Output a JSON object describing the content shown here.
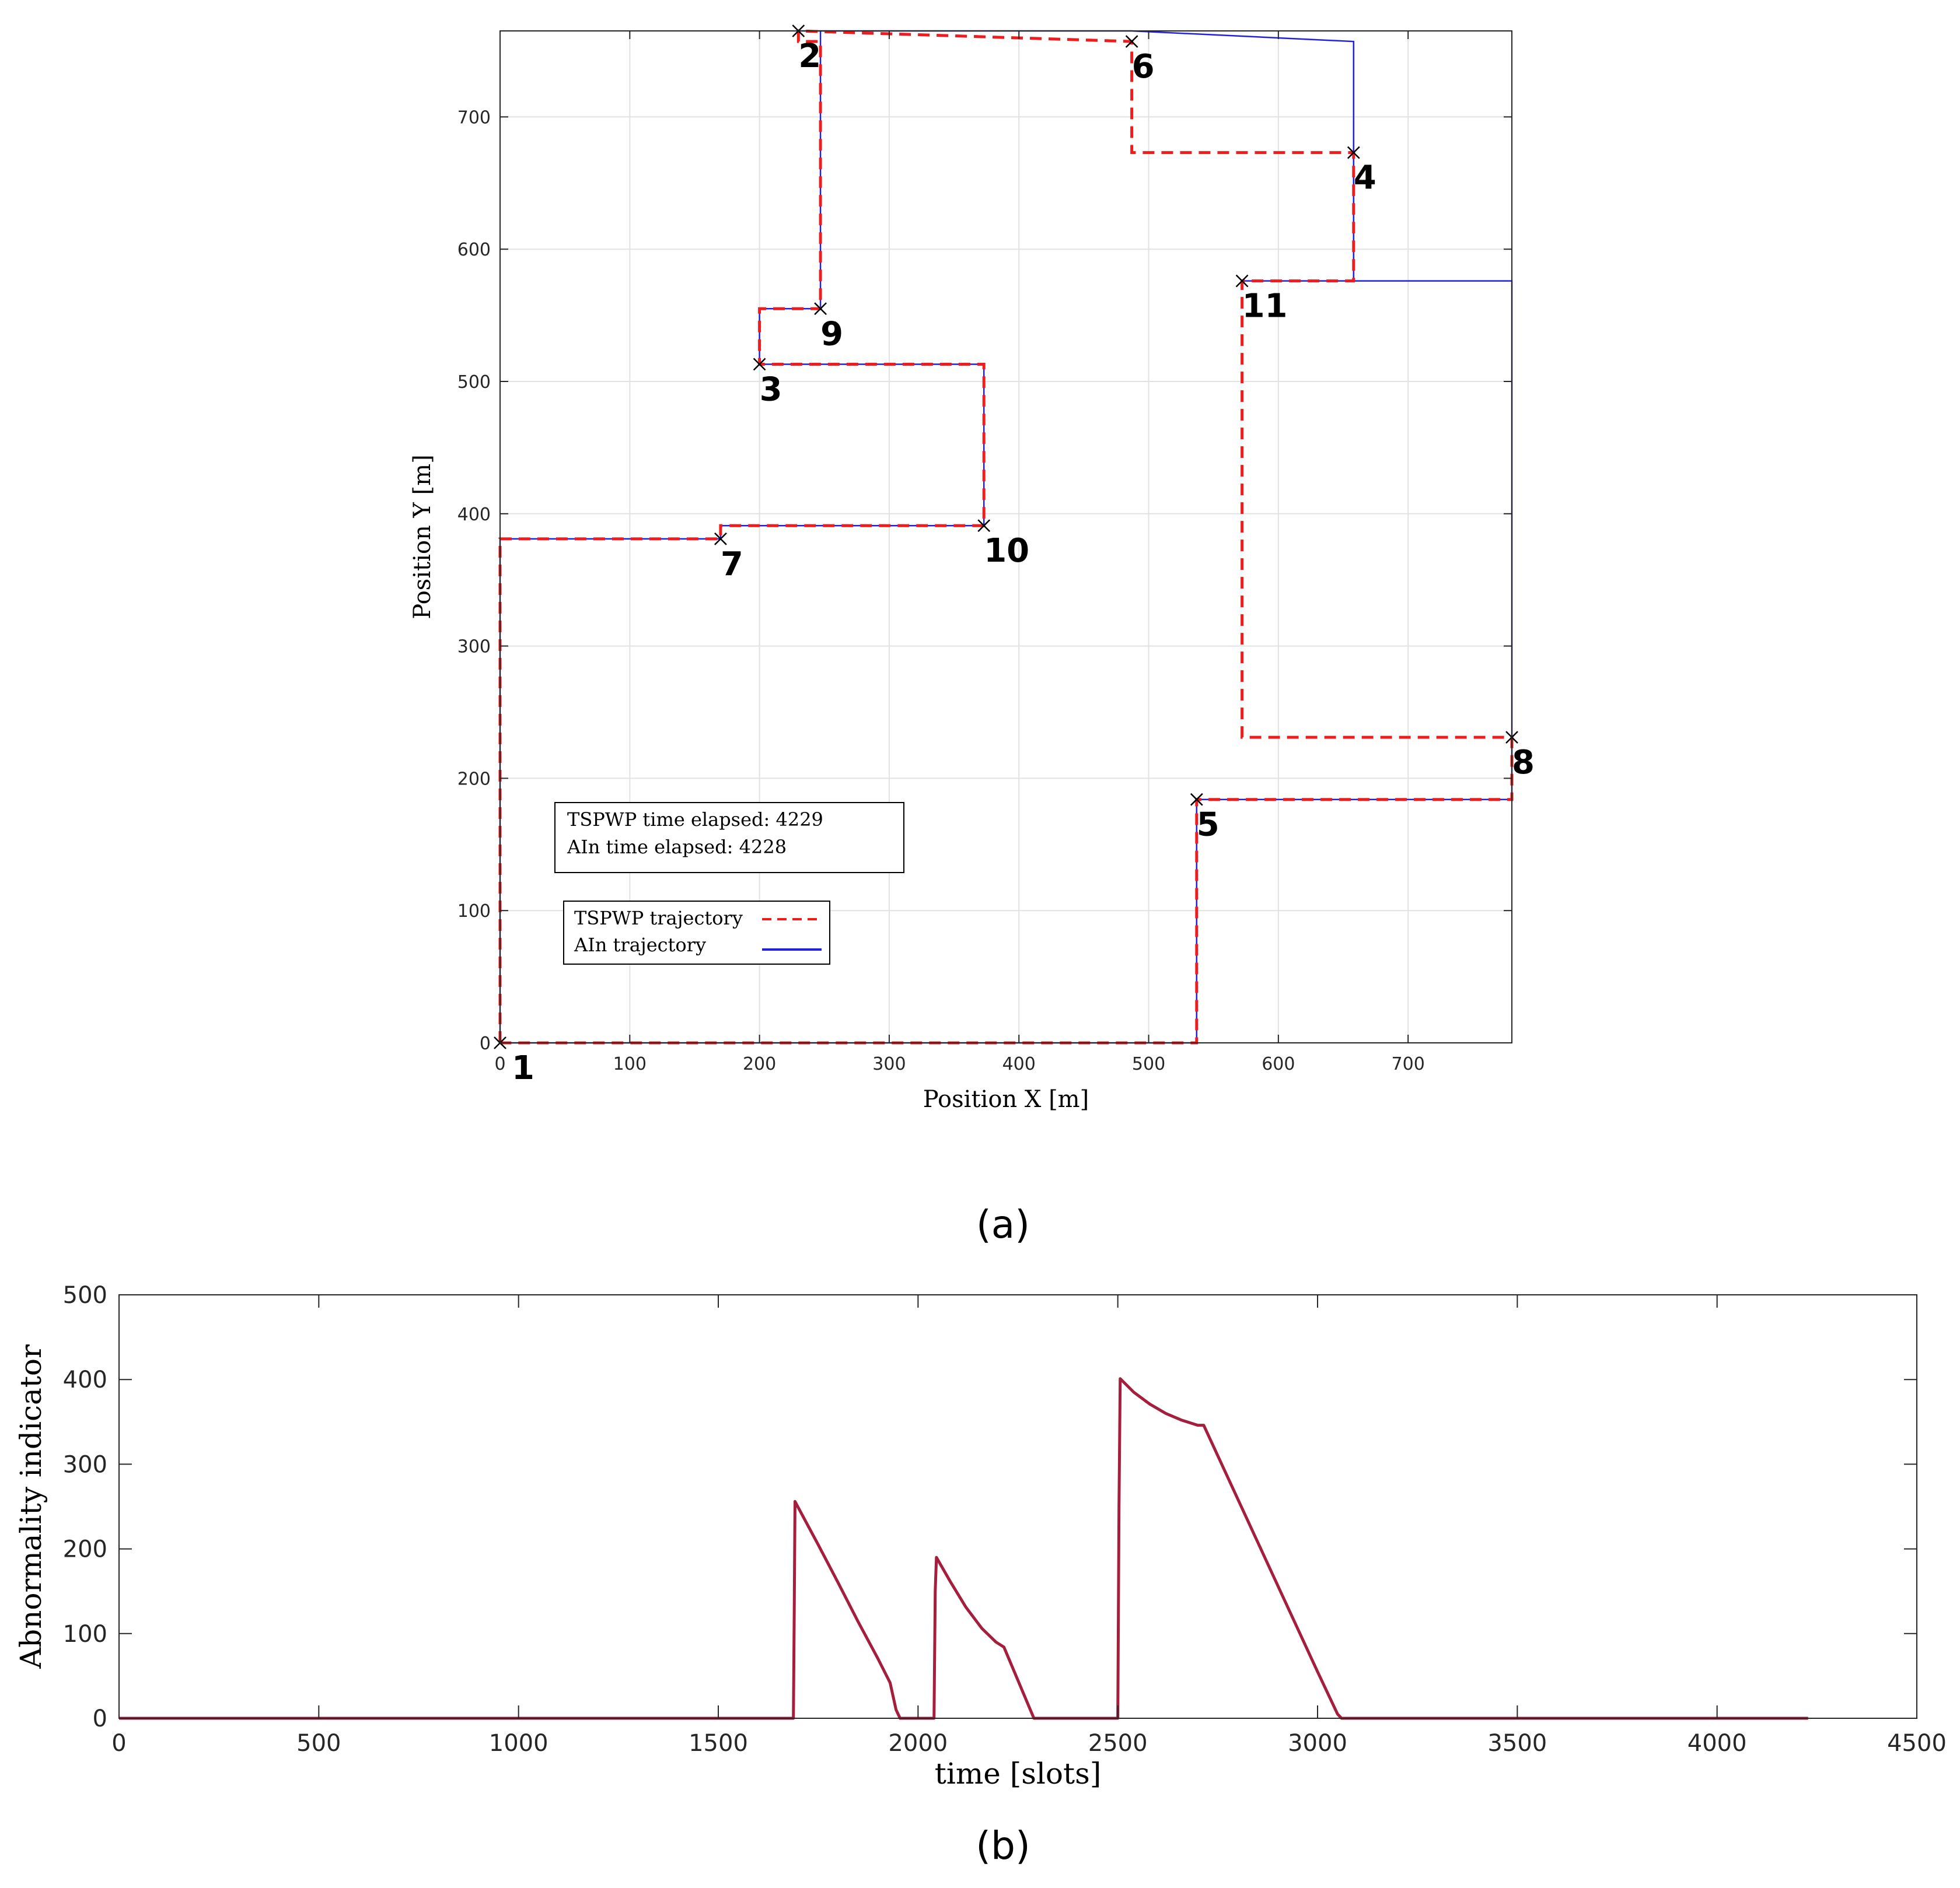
{
  "chart_data": [
    {
      "type": "line",
      "caption": "(a)",
      "xlabel": "Position X [m]",
      "ylabel": "Position Y [m]",
      "xlim": [
        0,
        780
      ],
      "ylim": [
        0,
        765
      ],
      "xticks": [
        0,
        100,
        200,
        300,
        400,
        500,
        600,
        700
      ],
      "yticks": [
        0,
        100,
        200,
        300,
        400,
        500,
        600,
        700
      ],
      "grid": true,
      "info_box": [
        "TSPWP time elapsed: 4229",
        "AIn time elapsed: 4228"
      ],
      "legend_position": "lower-left",
      "colors": {
        "tspwp": "#ee1c1c",
        "ain": "#2020dd",
        "markers": "#000000"
      },
      "waypoints": [
        {
          "label": "1",
          "x": 0,
          "y": 0
        },
        {
          "label": "2",
          "x": 230,
          "y": 765
        },
        {
          "label": "3",
          "x": 200,
          "y": 513
        },
        {
          "label": "4",
          "x": 658,
          "y": 673
        },
        {
          "label": "5",
          "x": 537,
          "y": 184
        },
        {
          "label": "6",
          "x": 487,
          "y": 757
        },
        {
          "label": "7",
          "x": 170,
          "y": 381
        },
        {
          "label": "8",
          "x": 780,
          "y": 231
        },
        {
          "label": "9",
          "x": 247,
          "y": 555
        },
        {
          "label": "10",
          "x": 373,
          "y": 391
        },
        {
          "label": "11",
          "x": 572,
          "y": 576
        }
      ],
      "series": [
        {
          "name": "TSPWP trajectory",
          "style": "dashed",
          "color": "#ee1c1c",
          "x": [
            0,
            0,
            170,
            170,
            373,
            373,
            200,
            200,
            247,
            247,
            230,
            230,
            487,
            487,
            658,
            658,
            572,
            572,
            780,
            780,
            537,
            537,
            0
          ],
          "y": [
            0,
            381,
            381,
            391,
            391,
            513,
            513,
            555,
            555,
            757,
            757,
            765,
            757,
            673,
            673,
            576,
            576,
            231,
            231,
            184,
            184,
            0,
            0
          ]
        },
        {
          "name": "AIn trajectory",
          "style": "solid",
          "color": "#2020dd",
          "x": [
            0,
            0,
            170,
            170,
            373,
            373,
            200,
            200,
            247,
            247,
            230,
            487,
            658,
            658,
            572,
            658,
            780,
            780,
            537,
            537,
            0
          ],
          "y": [
            0,
            381,
            381,
            391,
            391,
            513,
            513,
            555,
            555,
            765,
            765,
            765,
            757,
            576,
            576,
            576,
            576,
            184,
            184,
            0,
            0
          ]
        }
      ]
    },
    {
      "type": "line",
      "caption": "(b)",
      "xlabel": "time [slots]",
      "ylabel": "Abnormality indicator",
      "xlim": [
        0,
        4500
      ],
      "ylim": [
        0,
        500
      ],
      "xticks": [
        0,
        500,
        1000,
        1500,
        2000,
        2500,
        3000,
        3500,
        4000,
        4500
      ],
      "yticks": [
        0,
        100,
        200,
        300,
        400,
        500
      ],
      "grid": false,
      "series": [
        {
          "color": "#a51e3c",
          "x": [
            0,
            1688,
            1690,
            1692,
            1750,
            1800,
            1850,
            1900,
            1930,
            1945,
            1955,
            2040,
            2043,
            2046,
            2080,
            2120,
            2160,
            2195,
            2215,
            2290,
            2300,
            2500,
            2503,
            2506,
            2540,
            2580,
            2620,
            2660,
            2700,
            2715,
            3000,
            3050,
            3060,
            4228
          ],
          "y": [
            0,
            0,
            120,
            256,
            205,
            160,
            114,
            70,
            42,
            10,
            0,
            0,
            150,
            190,
            162,
            131,
            106,
            90,
            84,
            0,
            0,
            0,
            250,
            401,
            385,
            371,
            360,
            352,
            346,
            346,
            55,
            5,
            0,
            0
          ]
        }
      ]
    }
  ]
}
